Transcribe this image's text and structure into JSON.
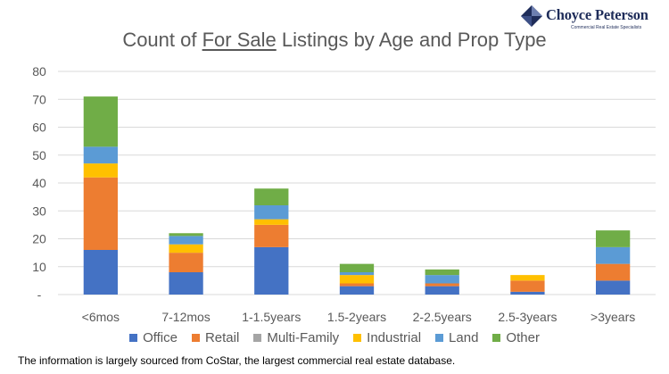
{
  "logo": {
    "name": "Choyce Peterson",
    "tagline": "Commercial Real Estate Specialists"
  },
  "title": {
    "before": "Count of ",
    "underlined": "For Sale",
    "after": " Listings by Age and Prop Type"
  },
  "footnote": "The information is largely sourced from CoStar, the largest commercial real estate database.",
  "chart_data": {
    "type": "bar",
    "stacked": true,
    "categories": [
      "<6mos",
      "7-12mos",
      "1-1.5years",
      "1.5-2years",
      "2-2.5years",
      "2.5-3years",
      ">3years"
    ],
    "series": [
      {
        "name": "Office",
        "color": "#4472c4",
        "values": [
          16,
          8,
          17,
          3,
          3,
          1,
          5
        ]
      },
      {
        "name": "Retail",
        "color": "#ed7d31",
        "values": [
          26,
          7,
          8,
          1,
          1,
          4,
          6
        ]
      },
      {
        "name": "Multi-Family",
        "color": "#a5a5a5",
        "values": [
          0,
          0,
          0,
          0,
          0,
          0,
          0
        ]
      },
      {
        "name": "Industrial",
        "color": "#ffc000",
        "values": [
          5,
          3,
          2,
          3,
          0,
          2,
          0
        ]
      },
      {
        "name": "Land",
        "color": "#5b9bd5",
        "values": [
          6,
          3,
          5,
          1,
          3,
          0,
          6
        ]
      },
      {
        "name": "Other",
        "color": "#70ad47",
        "values": [
          18,
          1,
          6,
          3,
          2,
          0,
          6
        ]
      }
    ],
    "y_ticks": [
      "-",
      "10",
      "20",
      "30",
      "40",
      "50",
      "60",
      "70",
      "80"
    ],
    "ylim": [
      0,
      80
    ],
    "grid": true,
    "legend_position": "bottom",
    "title": "Count of For Sale Listings by Age and Prop Type",
    "xlabel": "",
    "ylabel": ""
  }
}
